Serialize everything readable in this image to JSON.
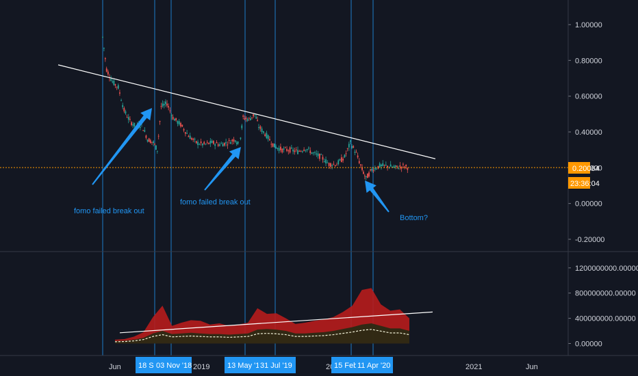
{
  "colors": {
    "background": "#131722",
    "text": "#d1d4dc",
    "accent": "#2196f3",
    "price_line": "#ff9800",
    "up": "#26a69a",
    "down": "#ef5350",
    "volume_band": "#b71c1c",
    "volume_avg": "#f5f5dc",
    "trendline": "#ffffff"
  },
  "price_label": "0.20064",
  "countdown_label": "23:36:04",
  "chart_data": [
    {
      "type": "candlestick",
      "title": "",
      "ylim": [
        -0.25,
        1.12
      ],
      "y_ticks": [
        "1.00000",
        "0.80000",
        "0.60000",
        "0.40000",
        "0.20000",
        "0.00000",
        "-0.20000"
      ],
      "y_tick_values": [
        1.0,
        0.8,
        0.6,
        0.4,
        0.2,
        0.0,
        -0.2
      ],
      "current_price": 0.20064,
      "price_path": [
        [
          0,
          0.93
        ],
        [
          2,
          0.75
        ],
        [
          5,
          0.68
        ],
        [
          8,
          0.65
        ],
        [
          11,
          0.52
        ],
        [
          14,
          0.46
        ],
        [
          17,
          0.43
        ],
        [
          20,
          0.44
        ],
        [
          23,
          0.36
        ],
        [
          26,
          0.34
        ],
        [
          28,
          0.3
        ],
        [
          30,
          0.54
        ],
        [
          33,
          0.56
        ],
        [
          36,
          0.48
        ],
        [
          40,
          0.44
        ],
        [
          44,
          0.38
        ],
        [
          48,
          0.34
        ],
        [
          52,
          0.33
        ],
        [
          56,
          0.34
        ],
        [
          60,
          0.33
        ],
        [
          64,
          0.34
        ],
        [
          68,
          0.36
        ],
        [
          70,
          0.32
        ],
        [
          72,
          0.48
        ],
        [
          75,
          0.47
        ],
        [
          78,
          0.5
        ],
        [
          80,
          0.43
        ],
        [
          84,
          0.38
        ],
        [
          88,
          0.32
        ],
        [
          92,
          0.3
        ],
        [
          96,
          0.3
        ],
        [
          100,
          0.29
        ],
        [
          104,
          0.31
        ],
        [
          108,
          0.28
        ],
        [
          112,
          0.26
        ],
        [
          116,
          0.22
        ],
        [
          120,
          0.22
        ],
        [
          124,
          0.26
        ],
        [
          127,
          0.34
        ],
        [
          130,
          0.28
        ],
        [
          133,
          0.19
        ],
        [
          135,
          0.14
        ],
        [
          138,
          0.19
        ],
        [
          142,
          0.21
        ],
        [
          146,
          0.21
        ],
        [
          150,
          0.2
        ],
        [
          154,
          0.21
        ],
        [
          157,
          0.2
        ]
      ],
      "annotations": [
        {
          "text": "fomo failed break out",
          "anchor": "first-arrow"
        },
        {
          "text": "fomo failed break out",
          "anchor": "second-arrow"
        },
        {
          "text": "Bottom?",
          "anchor": "third-arrow"
        }
      ]
    },
    {
      "type": "area",
      "title": "",
      "ylim": [
        -60000000,
        1350000000
      ],
      "y_ticks": [
        "1200000000.00000",
        "800000000.00000",
        "400000000.00000",
        "0.00000"
      ],
      "y_tick_values": [
        1200000000,
        800000000,
        400000000,
        0
      ],
      "series": [
        {
          "values_upper": [
            60,
            70,
            110,
            180,
            420,
            600,
            280,
            330,
            370,
            360,
            300,
            320,
            280,
            300,
            330,
            560,
            470,
            480,
            400,
            310,
            330,
            360,
            380,
            420,
            500,
            600,
            850,
            880,
            620,
            520,
            540,
            400
          ]
        },
        {
          "values_avg": [
            40,
            45,
            60,
            90,
            160,
            200,
            150,
            160,
            170,
            160,
            150,
            150,
            140,
            150,
            160,
            220,
            230,
            220,
            200,
            160,
            160,
            170,
            180,
            200,
            230,
            260,
            300,
            320,
            280,
            240,
            240,
            200
          ]
        }
      ]
    }
  ],
  "x_axis": {
    "labels": [
      "Jun",
      "2019",
      "20",
      "2021",
      "Jun"
    ],
    "date_badges": [
      "18 S",
      "03 Nov '18",
      "13 May '1",
      "31 Jul '19",
      "15 Feb",
      "11 Apr '20"
    ]
  }
}
